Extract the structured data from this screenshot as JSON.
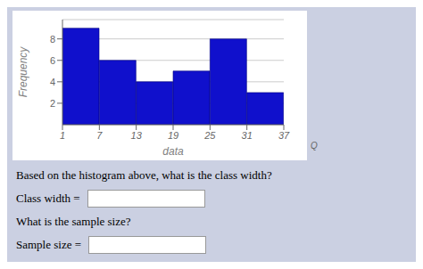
{
  "chart_data": {
    "type": "histogram",
    "bins": [
      1,
      7,
      13,
      19,
      25,
      31,
      37
    ],
    "values": [
      9,
      6,
      4,
      5,
      8,
      3
    ],
    "color": "#1010CC",
    "x_label": "data",
    "y_label": "Frequency",
    "xlim": [
      1,
      37
    ],
    "ylim": [
      0,
      9.8
    ],
    "xticks": [
      1,
      7,
      13,
      19,
      25,
      31,
      37
    ],
    "yticks": [
      2,
      4,
      6,
      8
    ],
    "grid": true,
    "annotations": [
      "Based on the histogram above, what is the class width?",
      "Class width =",
      "What is the sample size?",
      "Sample size =",
      "Q"
    ]
  }
}
